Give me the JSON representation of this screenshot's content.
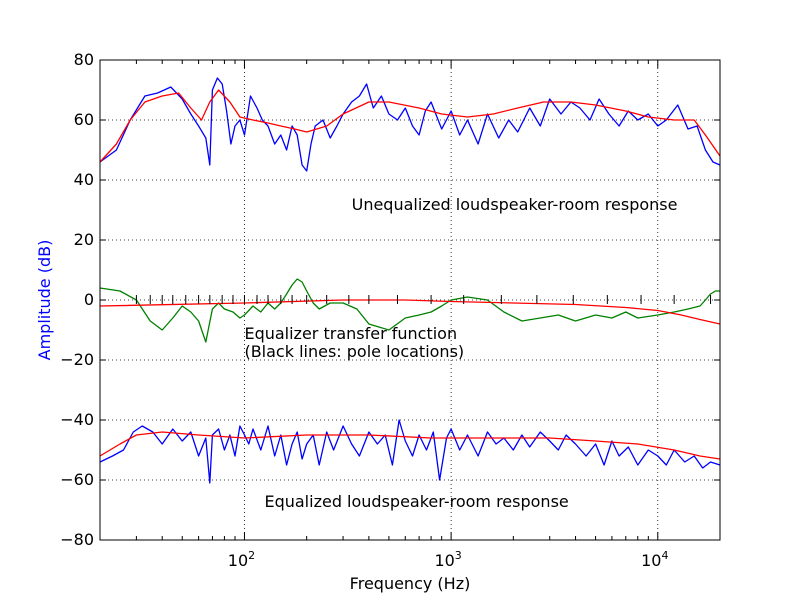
{
  "chart_data": {
    "type": "line",
    "xlabel": "Frequency (Hz)",
    "ylabel": "Amplitude (dB)",
    "xscale": "log",
    "xlim": [
      20,
      20000
    ],
    "ylim": [
      -80,
      80
    ],
    "yticks": [
      80,
      60,
      40,
      20,
      0,
      -20,
      -40,
      -60,
      -80
    ],
    "ytick_labels": [
      "80",
      "60",
      "40",
      "20",
      "0",
      "−20",
      "−40",
      "−60",
      "−80"
    ],
    "xticks": [
      {
        "value": 100,
        "base": "10",
        "exp": "2"
      },
      {
        "value": 1000,
        "base": "10",
        "exp": "3"
      },
      {
        "value": 10000,
        "base": "10",
        "exp": "4"
      }
    ],
    "grid": true,
    "colors": {
      "raw": "#0000ff",
      "smooth": "#ff0000",
      "equalizer": "#008000",
      "poles": "#000000",
      "ylabel": "#0000ff"
    },
    "annotations": [
      {
        "id": "unequalized",
        "text": "Unequalized loudspeaker-room response",
        "x": 330,
        "y": 30
      },
      {
        "id": "eq-line1",
        "text": "Equalizer transfer function",
        "x": 100,
        "y": -13
      },
      {
        "id": "eq-line2",
        "text": "(Black lines: pole locations)",
        "x": 100,
        "y": -19
      },
      {
        "id": "equalized",
        "text": "Equalized loudspeaker-room response",
        "x": 125,
        "y": -69
      }
    ],
    "pole_locations_hz": [
      30,
      35,
      40,
      45,
      52,
      60,
      68,
      78,
      88,
      100,
      115,
      130,
      150,
      170,
      200,
      250,
      320,
      400,
      550,
      800,
      1150,
      1750,
      2600,
      3900,
      5700,
      8300,
      12000,
      18000
    ],
    "series": [
      {
        "id": "unequalized-raw",
        "role": "raw",
        "x": [
          20,
          24,
          28,
          33,
          38,
          44,
          50,
          55,
          60,
          65,
          68,
          70,
          74,
          78,
          82,
          86,
          90,
          95,
          100,
          107,
          115,
          122,
          130,
          140,
          150,
          160,
          170,
          180,
          190,
          200,
          210,
          220,
          240,
          260,
          280,
          300,
          330,
          360,
          390,
          420,
          460,
          500,
          550,
          600,
          650,
          700,
          750,
          800,
          900,
          1000,
          1100,
          1200,
          1350,
          1500,
          1700,
          1900,
          2100,
          2400,
          2700,
          3000,
          3400,
          3800,
          4200,
          4700,
          5200,
          5800,
          6500,
          7200,
          8000,
          9000,
          10000,
          11000,
          12500,
          14000,
          15500,
          17000,
          18500,
          20000
        ],
        "y": [
          46,
          50,
          60,
          68,
          69,
          71,
          67,
          62,
          58,
          54,
          45,
          70,
          74,
          72,
          63,
          52,
          58,
          60,
          55,
          68,
          64,
          60,
          58,
          52,
          55,
          50,
          58,
          55,
          45,
          43,
          52,
          58,
          60,
          54,
          58,
          62,
          66,
          68,
          72,
          64,
          68,
          62,
          60,
          64,
          58,
          55,
          63,
          66,
          57,
          63,
          55,
          60,
          52,
          62,
          54,
          60,
          56,
          64,
          58,
          67,
          62,
          66,
          64,
          60,
          67,
          62,
          58,
          63,
          60,
          62,
          58,
          60,
          65,
          57,
          58,
          50,
          46,
          45
        ]
      },
      {
        "id": "unequalized-smooth",
        "role": "smooth",
        "x": [
          20,
          24,
          28,
          33,
          40,
          48,
          55,
          62,
          68,
          75,
          85,
          95,
          110,
          130,
          150,
          175,
          200,
          250,
          300,
          400,
          500,
          700,
          900,
          1200,
          1600,
          2100,
          2800,
          3800,
          5000,
          7000,
          9000,
          12000,
          15000,
          17000,
          20000
        ],
        "y": [
          46,
          52,
          60,
          66,
          68,
          69,
          64,
          60,
          66,
          70,
          66,
          61,
          60,
          59,
          58,
          57,
          56,
          58,
          62,
          66,
          66,
          64,
          62,
          61,
          62,
          64,
          66,
          66,
          65,
          63,
          61,
          60,
          60,
          55,
          48
        ]
      },
      {
        "id": "equalizer",
        "role": "equalizer",
        "x": [
          20,
          25,
          30,
          35,
          40,
          45,
          50,
          55,
          60,
          65,
          70,
          75,
          80,
          88,
          95,
          100,
          110,
          120,
          130,
          140,
          150,
          160,
          170,
          180,
          190,
          200,
          215,
          230,
          260,
          300,
          350,
          400,
          500,
          600,
          700,
          800,
          900,
          1000,
          1200,
          1500,
          1800,
          2200,
          2700,
          3300,
          4000,
          5000,
          6000,
          7000,
          8000,
          10000,
          12000,
          14000,
          16000,
          17000,
          18000,
          19000,
          20000
        ],
        "y": [
          4,
          3,
          0,
          -7,
          -10,
          -6,
          -2,
          -4,
          -7,
          -14,
          -3,
          -1,
          -3,
          -4,
          -6,
          -5,
          -2,
          -4,
          -1,
          -3,
          -1,
          2,
          5,
          7,
          6,
          3,
          -1,
          -3,
          -1,
          -1,
          -3,
          -8,
          -10,
          -6,
          -5,
          -4,
          -2,
          0,
          1,
          0,
          -4,
          -7,
          -6,
          -5,
          -7,
          -5,
          -6,
          -4,
          -6,
          -5,
          -4,
          -3,
          -2,
          0,
          2,
          3,
          3
        ]
      },
      {
        "id": "equalizer-smooth",
        "role": "smooth",
        "x": [
          20,
          100,
          300,
          600,
          1000,
          2000,
          4000,
          7000,
          10000,
          13000,
          16000,
          20000
        ],
        "y": [
          -2,
          -1,
          0,
          0,
          -0.5,
          -1,
          -1.5,
          -2.5,
          -3.5,
          -5,
          -6.5,
          -8
        ]
      },
      {
        "id": "equalized-raw",
        "role": "raw",
        "x": [
          20,
          23,
          26,
          29,
          32,
          36,
          40,
          45,
          50,
          55,
          60,
          65,
          68,
          70,
          75,
          80,
          85,
          90,
          95,
          100,
          105,
          110,
          120,
          130,
          140,
          150,
          160,
          170,
          180,
          190,
          200,
          215,
          230,
          250,
          270,
          300,
          330,
          360,
          400,
          440,
          480,
          520,
          560,
          600,
          650,
          700,
          760,
          820,
          880,
          950,
          1000,
          1100,
          1200,
          1350,
          1500,
          1650,
          1800,
          2000,
          2200,
          2400,
          2700,
          3000,
          3300,
          3600,
          4000,
          4500,
          5000,
          5500,
          6000,
          6500,
          7200,
          8000,
          9000,
          10000,
          11000,
          12000,
          13500,
          15000,
          16500,
          18000,
          20000
        ],
        "y": [
          -54,
          -52,
          -50,
          -44,
          -42,
          -44,
          -48,
          -43,
          -47,
          -44,
          -52,
          -46,
          -61,
          -45,
          -43,
          -50,
          -45,
          -52,
          -42,
          -45,
          -48,
          -43,
          -50,
          -42,
          -52,
          -45,
          -55,
          -48,
          -44,
          -53,
          -48,
          -45,
          -55,
          -44,
          -50,
          -42,
          -48,
          -52,
          -44,
          -48,
          -45,
          -55,
          -40,
          -47,
          -52,
          -45,
          -50,
          -44,
          -60,
          -46,
          -43,
          -50,
          -45,
          -52,
          -44,
          -48,
          -46,
          -50,
          -45,
          -49,
          -44,
          -47,
          -50,
          -45,
          -48,
          -52,
          -48,
          -55,
          -47,
          -52,
          -49,
          -55,
          -50,
          -52,
          -55,
          -50,
          -54,
          -52,
          -56,
          -54,
          -55
        ]
      },
      {
        "id": "equalized-smooth",
        "role": "smooth",
        "x": [
          20,
          25,
          30,
          40,
          60,
          100,
          200,
          400,
          800,
          1500,
          3000,
          5000,
          8000,
          12000,
          16000,
          20000
        ],
        "y": [
          -52,
          -48,
          -45,
          -44,
          -45,
          -46,
          -45,
          -45,
          -46,
          -46,
          -46,
          -47,
          -48,
          -50,
          -52,
          -53
        ]
      }
    ]
  }
}
